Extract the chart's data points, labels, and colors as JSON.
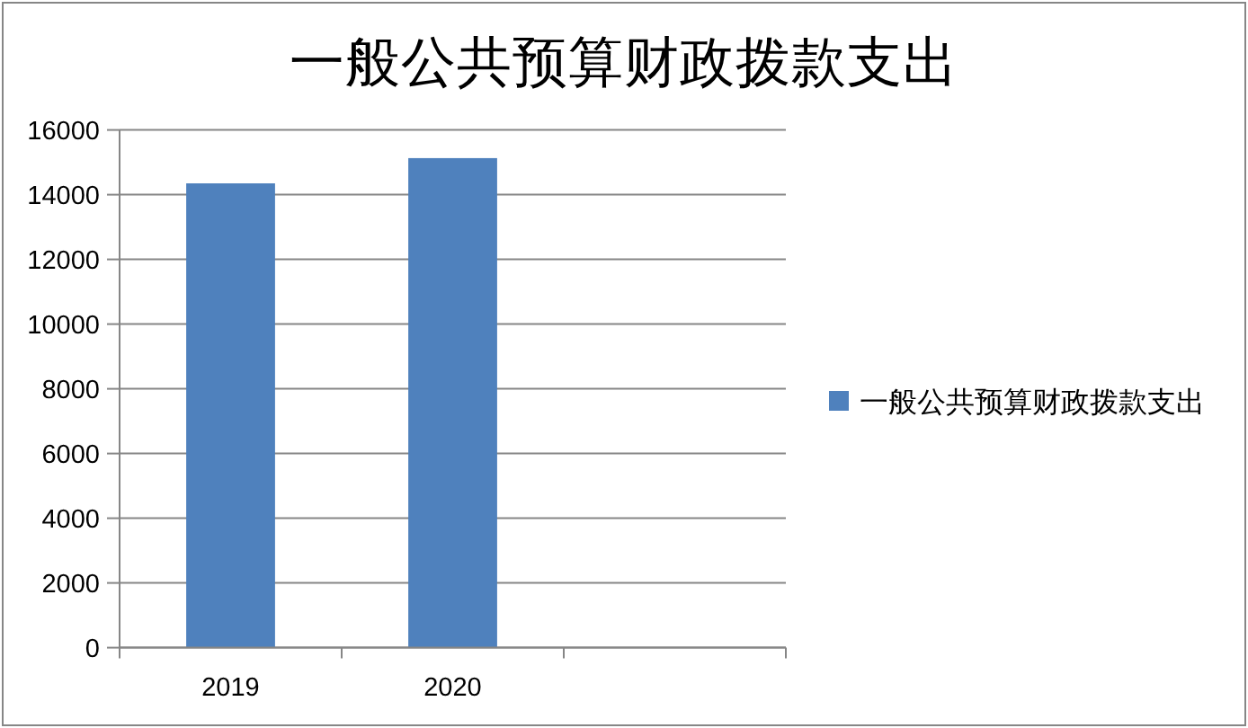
{
  "chart_data": {
    "type": "bar",
    "title": "一般公共预算财政拨款支出",
    "categories": [
      "2019",
      "2020",
      null
    ],
    "series": [
      {
        "name": "一般公共预算财政拨款支出",
        "color": "#4f81bd",
        "values": [
          14350,
          15130,
          null
        ]
      }
    ],
    "ylim": [
      0,
      16000
    ],
    "yticks": [
      0,
      2000,
      4000,
      6000,
      8000,
      10000,
      12000,
      14000,
      16000
    ],
    "grid": "y",
    "legend": "right"
  }
}
